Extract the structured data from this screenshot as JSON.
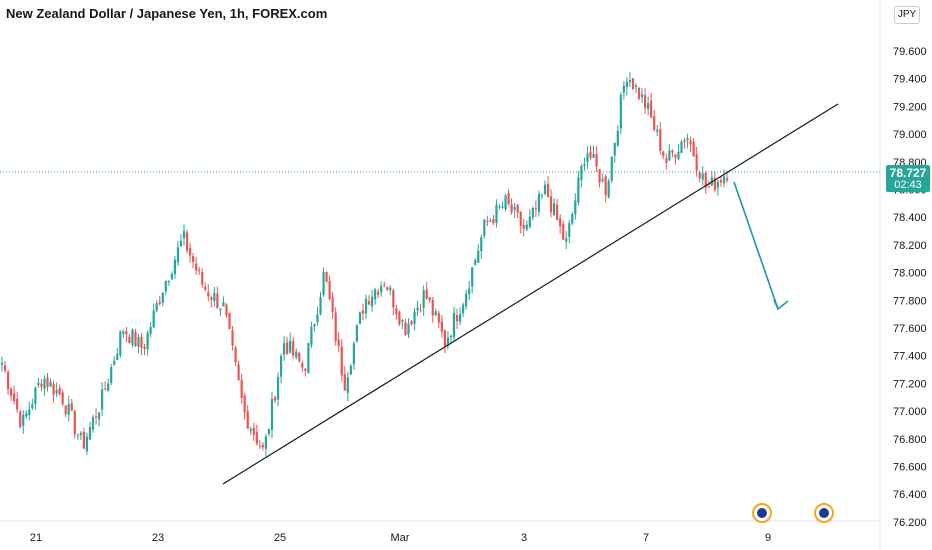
{
  "header": {
    "title": "New Zealand Dollar / Japanese Yen, 1h, FOREX.com",
    "currency": "JPY"
  },
  "price_tag": {
    "price": "78.727",
    "countdown": "02:43"
  },
  "colors": {
    "up": "#26a69a",
    "down": "#ef5350",
    "trendline": "#131722",
    "arrow": "#2196a8",
    "grid": "#ffffff"
  },
  "icons": [
    "calendar-event-icon",
    "calendar-event-icon"
  ],
  "chart_data": {
    "type": "candlestick",
    "y_axis_ticks": [
      "79.600",
      "79.400",
      "79.200",
      "79.000",
      "78.800",
      "78.600",
      "78.400",
      "78.200",
      "78.000",
      "77.800",
      "77.600",
      "77.400",
      "77.200",
      "77.000",
      "76.800",
      "76.600",
      "76.400",
      "76.200"
    ],
    "x_axis_ticks": [
      "21",
      "23",
      "25",
      "Mar",
      "3",
      "7",
      "9"
    ],
    "ylim": [
      76.2,
      79.8
    ],
    "current_price": 78.727,
    "series": [
      {
        "name": "NZDJPY",
        "anchors": [
          {
            "x": "21",
            "y": 77.35
          },
          {
            "x": "21",
            "y": 76.9
          },
          {
            "x": "21",
            "y": 77.25
          },
          {
            "x": "21",
            "y": 77.1
          },
          {
            "x": "23",
            "y": 76.75
          },
          {
            "x": "23",
            "y": 77.1
          },
          {
            "x": "23",
            "y": 77.6
          },
          {
            "x": "23",
            "y": 77.45
          },
          {
            "x": "23",
            "y": 77.9
          },
          {
            "x": "23",
            "y": 78.25
          },
          {
            "x": "23",
            "y": 77.9
          },
          {
            "x": "23",
            "y": 77.75
          },
          {
            "x": "25",
            "y": 77.0
          },
          {
            "x": "25",
            "y": 76.7
          },
          {
            "x": "25",
            "y": 77.5
          },
          {
            "x": "25",
            "y": 77.3
          },
          {
            "x": "25",
            "y": 78.0
          },
          {
            "x": "25",
            "y": 77.2
          },
          {
            "x": "25",
            "y": 77.8
          },
          {
            "x": "Mar",
            "y": 77.95
          },
          {
            "x": "Mar",
            "y": 77.6
          },
          {
            "x": "Mar",
            "y": 77.85
          },
          {
            "x": "Mar",
            "y": 77.5
          },
          {
            "x": "Mar",
            "y": 77.85
          },
          {
            "x": "3",
            "y": 78.35
          },
          {
            "x": "3",
            "y": 78.5
          },
          {
            "x": "3",
            "y": 78.3
          },
          {
            "x": "3",
            "y": 78.6
          },
          {
            "x": "3",
            "y": 78.2
          },
          {
            "x": "3",
            "y": 78.9
          },
          {
            "x": "7",
            "y": 78.6
          },
          {
            "x": "7",
            "y": 79.45
          },
          {
            "x": "7",
            "y": 79.2
          },
          {
            "x": "7",
            "y": 78.8
          },
          {
            "x": "7",
            "y": 79.0
          },
          {
            "x": "7",
            "y": 78.6
          },
          {
            "x": "7",
            "y": 78.73
          }
        ]
      }
    ],
    "annotations": [
      {
        "type": "trendline",
        "from": {
          "x": "24",
          "y": 76.45
        },
        "to": {
          "x": "9+",
          "y": 79.2
        }
      },
      {
        "type": "arrow",
        "from": {
          "x": "8",
          "y": 78.7
        },
        "to": {
          "x": "9",
          "y": 77.75
        }
      }
    ]
  }
}
